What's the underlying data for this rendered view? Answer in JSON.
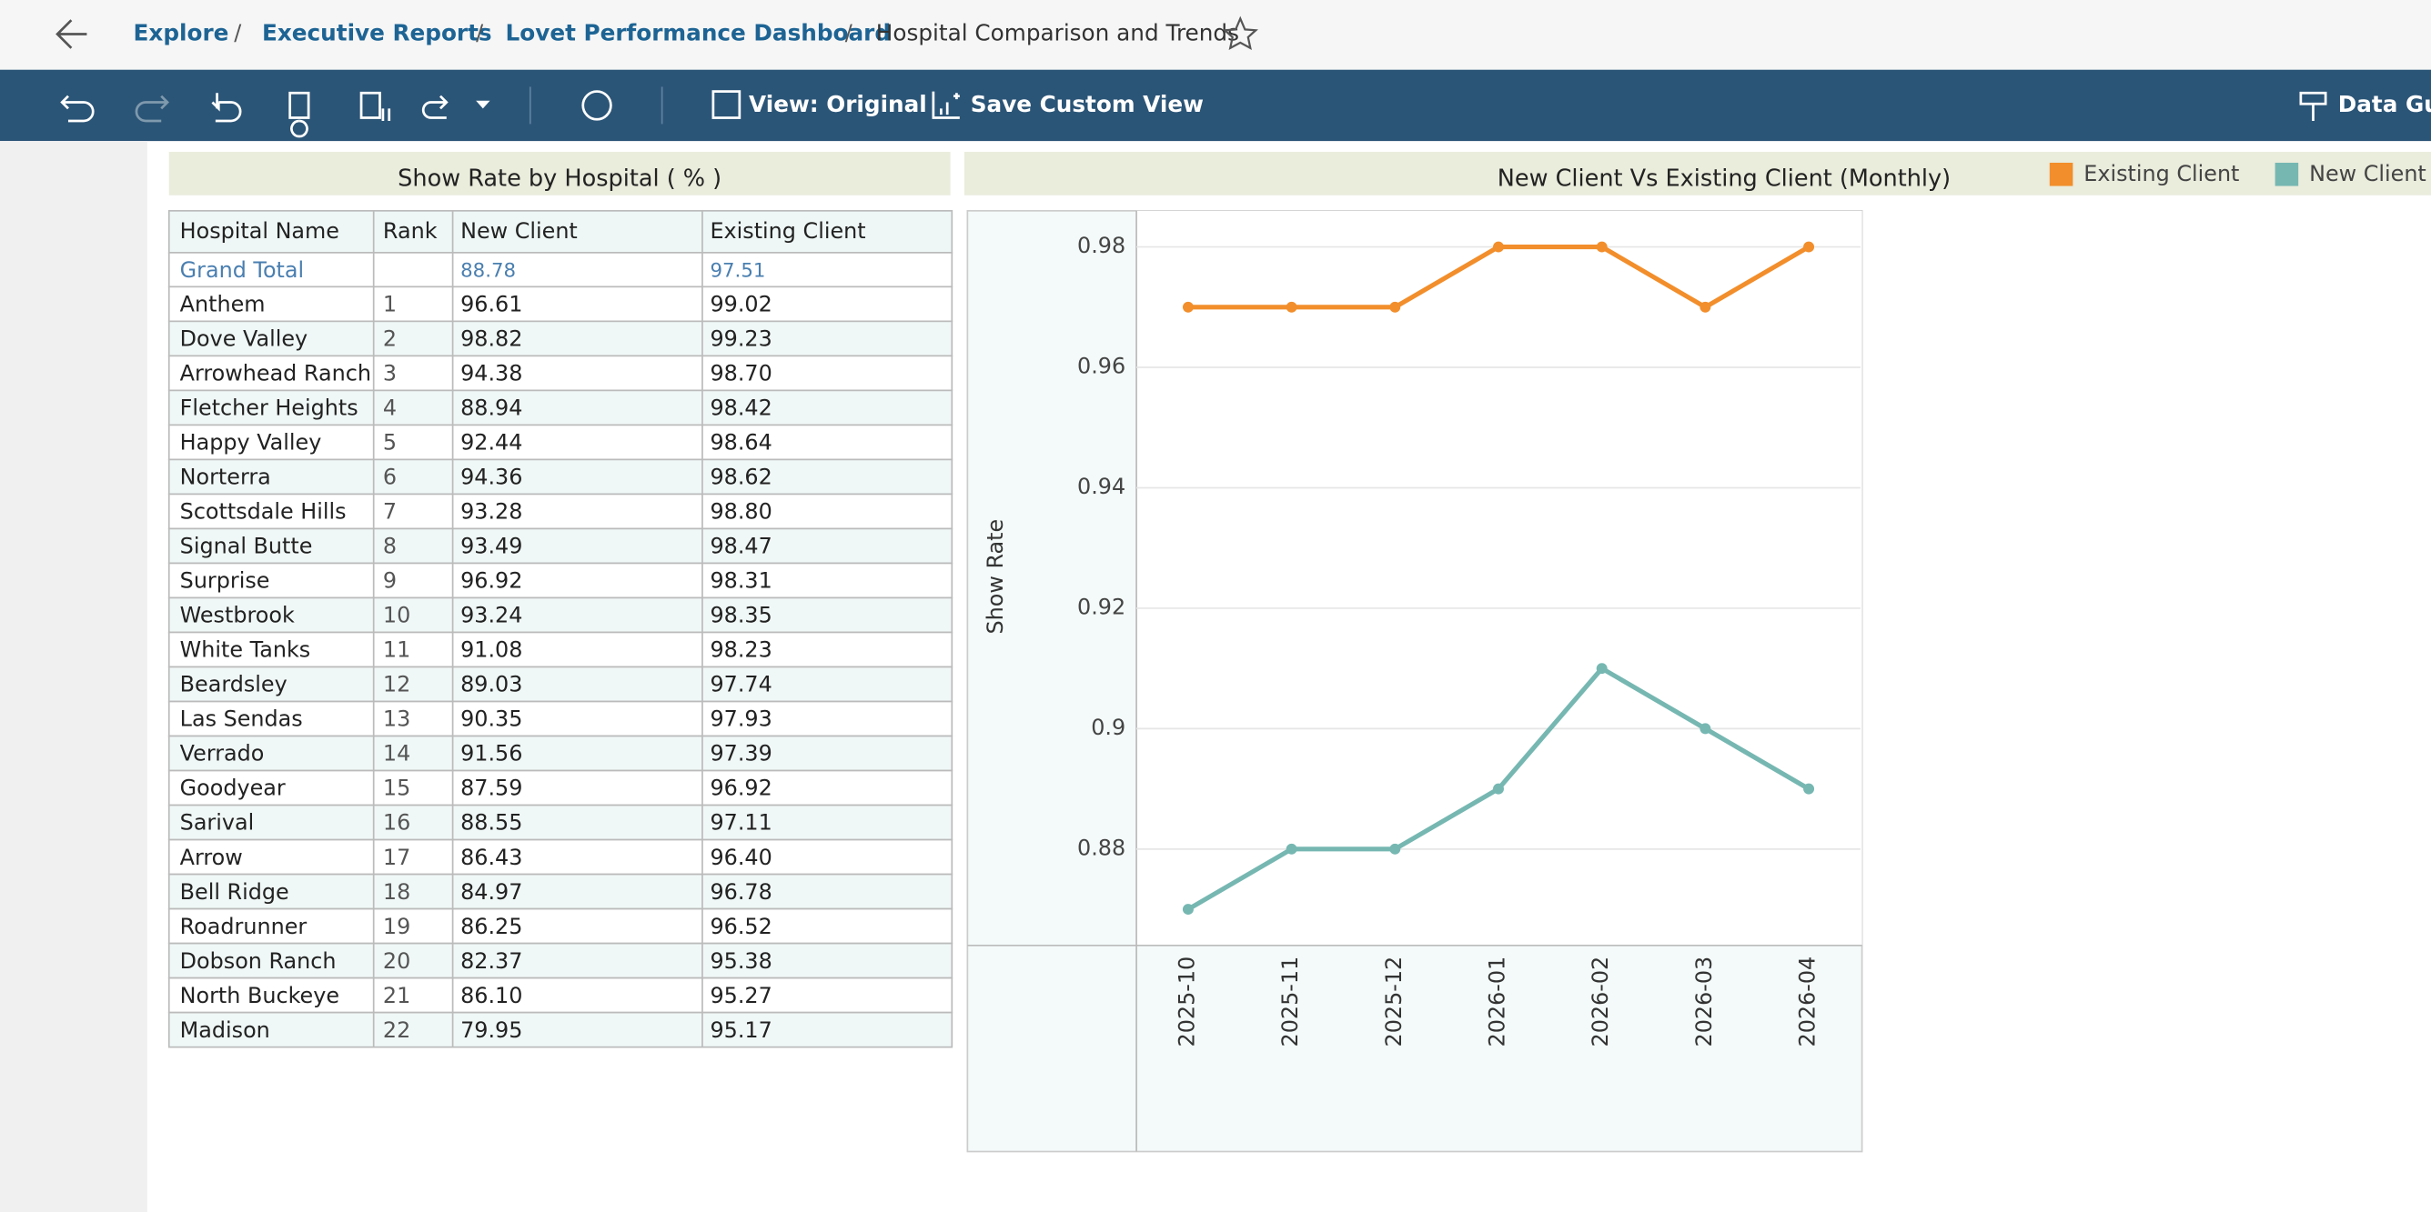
{
  "breadcrumb": {
    "items": [
      "Explore",
      "Executive Reports",
      "Lovet Performance Dashboard"
    ],
    "current": "Hospital Comparison and Trends"
  },
  "toolbar": {
    "view": "View: Original",
    "save": "Save Custom View",
    "guide": "Data Guide"
  },
  "table": {
    "title": "Show Rate by Hospital ( % )",
    "headers": [
      "Hospital Name",
      "Rank",
      "New Client",
      "Existing Client"
    ],
    "grand_total": {
      "label": "Grand Total",
      "new_client": "88.78",
      "existing_client": "97.51"
    },
    "rows": [
      [
        "Anthem",
        "1",
        "96.61",
        "99.02"
      ],
      [
        "Dove Valley",
        "2",
        "98.82",
        "99.23"
      ],
      [
        "Arrowhead Ranch",
        "3",
        "94.38",
        "98.70"
      ],
      [
        "Fletcher Heights",
        "4",
        "88.94",
        "98.42"
      ],
      [
        "Happy Valley",
        "5",
        "92.44",
        "98.64"
      ],
      [
        "Norterra",
        "6",
        "94.36",
        "98.62"
      ],
      [
        "Scottsdale Hills",
        "7",
        "93.28",
        "98.80"
      ],
      [
        "Signal Butte",
        "8",
        "93.49",
        "98.47"
      ],
      [
        "Surprise",
        "9",
        "96.92",
        "98.31"
      ],
      [
        "Westbrook",
        "10",
        "93.24",
        "98.35"
      ],
      [
        "White Tanks",
        "11",
        "91.08",
        "98.23"
      ],
      [
        "Beardsley",
        "12",
        "89.03",
        "97.74"
      ],
      [
        "Las Sendas",
        "13",
        "90.35",
        "97.93"
      ],
      [
        "Verrado",
        "14",
        "91.56",
        "97.39"
      ],
      [
        "Goodyear",
        "15",
        "87.59",
        "96.92"
      ],
      [
        "Sarival",
        "16",
        "88.55",
        "97.11"
      ],
      [
        "Arrow",
        "17",
        "86.43",
        "96.40"
      ],
      [
        "Bell Ridge",
        "18",
        "84.97",
        "96.78"
      ],
      [
        "Roadrunner",
        "19",
        "86.25",
        "96.52"
      ],
      [
        "Dobson Ranch",
        "20",
        "82.37",
        "95.38"
      ],
      [
        "North Buckeye",
        "21",
        "86.10",
        "95.27"
      ],
      [
        "Madison",
        "22",
        "79.95",
        "95.17"
      ]
    ]
  },
  "chart_data": {
    "type": "line",
    "title": "New Client Vs Existing Client (Monthly)",
    "y_label": "Show Rate",
    "categories": [
      "2025-10",
      "2025-11",
      "2025-12",
      "2026-01",
      "2026-02",
      "2026-03",
      "2026-04"
    ],
    "series": [
      {
        "name": "Existing Client",
        "color": "#f28e2b",
        "values": [
          0.97,
          0.97,
          0.97,
          0.98,
          0.98,
          0.97,
          0.98
        ]
      },
      {
        "name": "New Client",
        "color": "#76b7b2",
        "values": [
          0.87,
          0.88,
          0.88,
          0.89,
          0.91,
          0.9,
          0.89
        ]
      }
    ],
    "ylim": [
      0.864,
      0.986
    ],
    "yticks": [
      0.88,
      0.9,
      0.92,
      0.94,
      0.96,
      0.98
    ],
    "grid": true
  }
}
